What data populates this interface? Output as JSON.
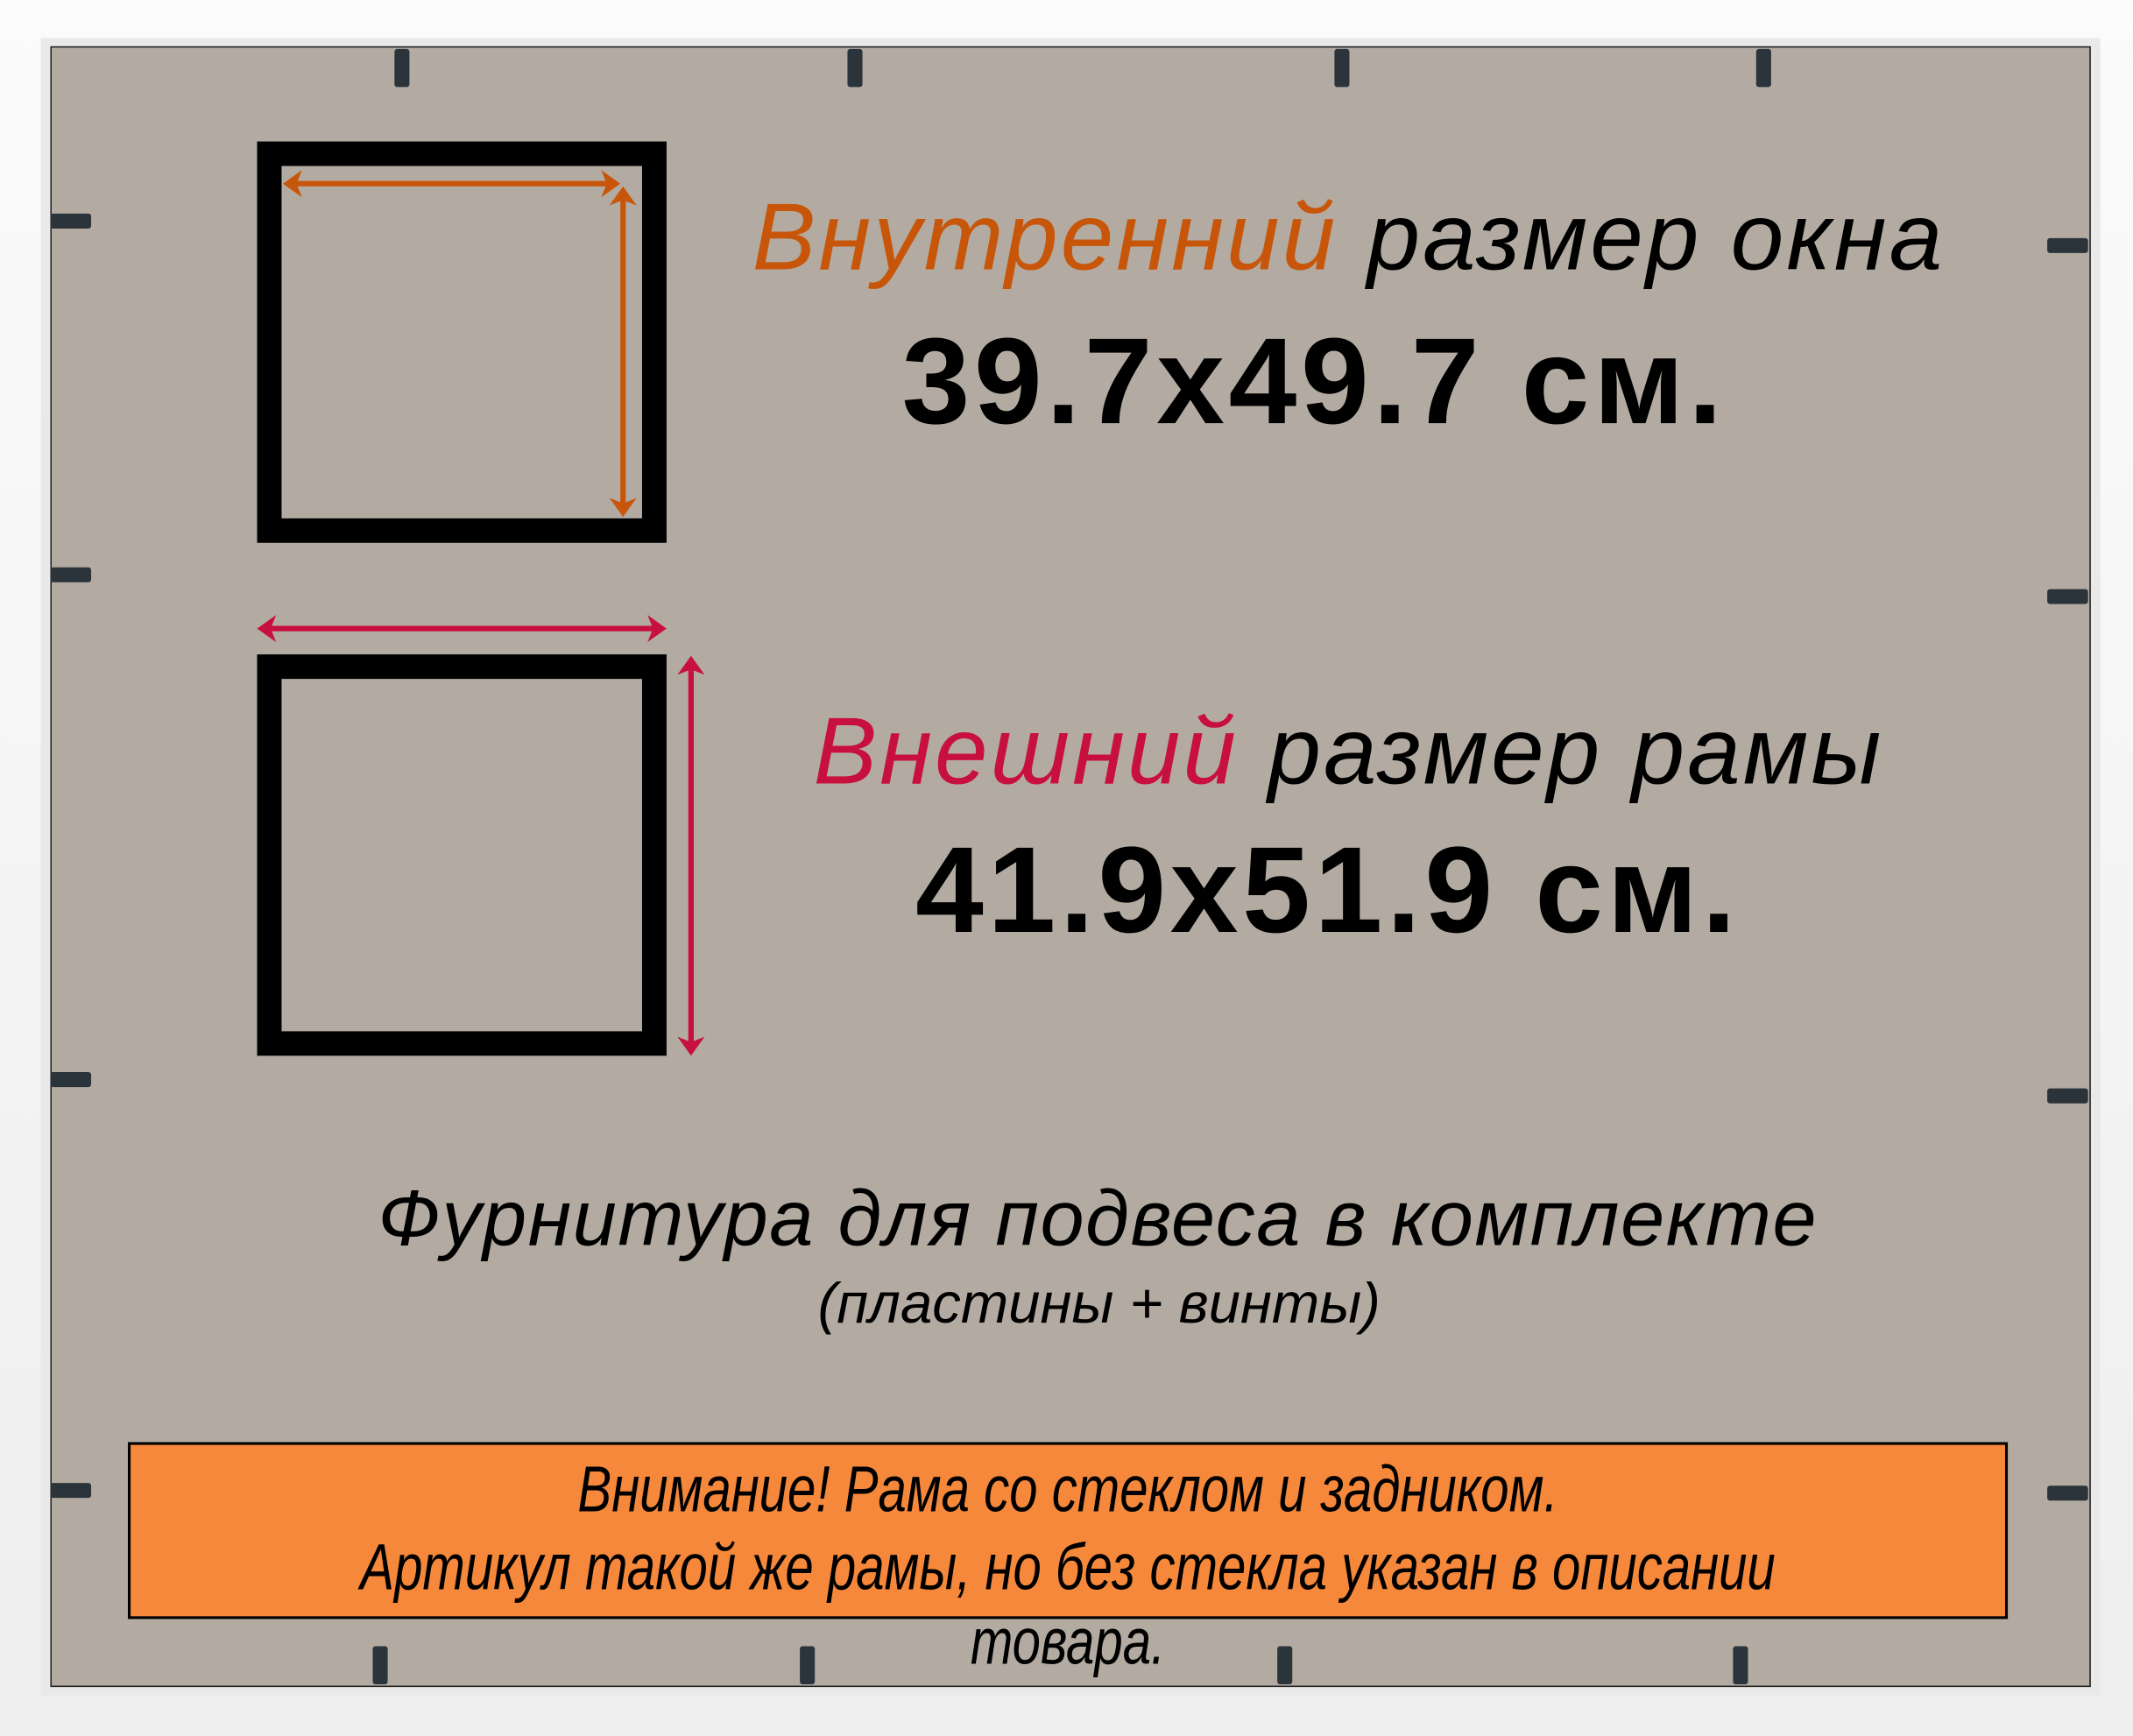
{
  "colors": {
    "inner_accent": "#c8560a",
    "outer_accent": "#c8103e",
    "warning_fill": "#f5883a",
    "backing": "#b3aba1",
    "frame": "#ffffff"
  },
  "inner": {
    "accent_word": "Внутренний",
    "rest": " размер окна",
    "size": "39.7x49.7 см."
  },
  "outer": {
    "accent_word": "Внешний",
    "rest": " размер рамы",
    "size": "41.9x51.9 см."
  },
  "hardware": {
    "title": "Фурнитура для подвеса в комплекте",
    "subtitle": "(пластины + винты)"
  },
  "warning": {
    "line1": "Внимание! Рама со стеклом и задником.",
    "line2": "Артикул такой же рамы, но без стекла указан в описании товара."
  }
}
